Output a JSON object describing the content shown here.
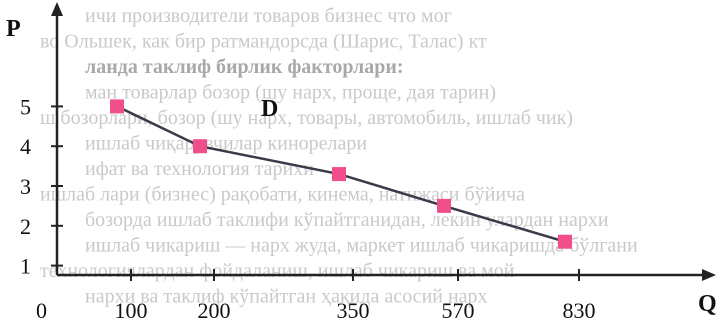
{
  "chart_data": {
    "type": "line",
    "title": "",
    "xlabel": "Q",
    "ylabel": "P",
    "origin_label": "0",
    "x_tick_labels": [
      "100",
      "200",
      "350",
      "570",
      "830"
    ],
    "y_tick_labels": [
      "1",
      "2",
      "3",
      "4",
      "5"
    ],
    "curve_label": "D",
    "series": [
      {
        "name": "",
        "x": [
          "100",
          "200",
          "350",
          "570",
          "830"
        ],
        "y": [
          5,
          4,
          3.3,
          2.5,
          1.6
        ]
      }
    ],
    "ylim": [
      0,
      5.5
    ],
    "grid": false,
    "line_color": "#3a3a4a",
    "marker_color": "#f04f8c",
    "marker_shape": "square"
  },
  "background_text": [
    "ичи производители товаров бизнес что мог",
    "во Ольшек, как бир ратмандорсда (Шарис, Талас) кт",
    "ланда таклиф бирлик факторлари:",
    "ман товарлар бозор (шу нарх, проще, дая тарин)",
    "ш бозорлари, бозор (шу нарх, товары, автомобиль, ишлаб чик)",
    "ишлаб чиқарувчилар кинорелари",
    "ифат ва технология тарихи",
    "ишлаб лари (бизнес) рақобати, кинема, натижаси бўйича",
    "бозорда ишлаб таклифи кўпайтганидан, лекин улардан нархи",
    "ишлаб чикариш — нарх жуда, маркет ишлаб чикаришда бўлгани",
    "технологиялардан фойдаланиш, ишлаб чикариш ва мой",
    "нархи ва таклиф кўпайтган ҳақида асосий нарх"
  ]
}
